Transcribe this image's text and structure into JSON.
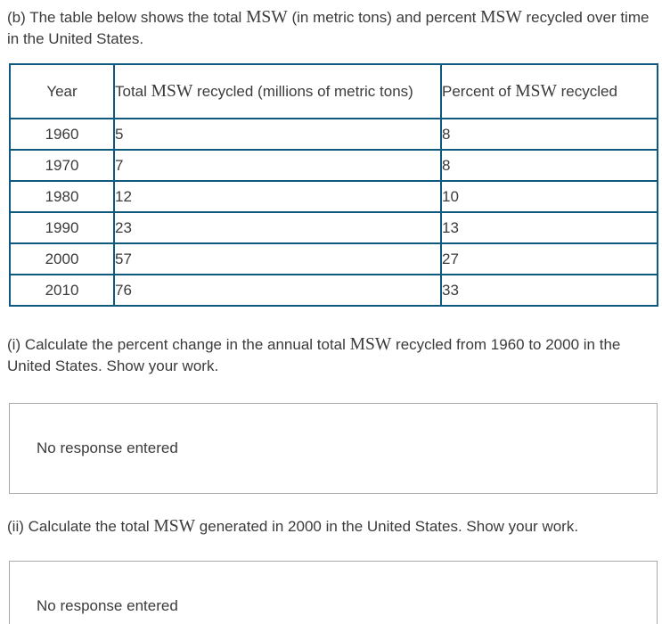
{
  "colors": {
    "text": "#3b3b3b",
    "table_border": "#0e5a7e",
    "box_border": "#a9a9a9",
    "background": "#ffffff"
  },
  "intro": {
    "segments": [
      {
        "text": "(b) The table below shows the total "
      },
      {
        "text": "MSW",
        "math": true
      },
      {
        "text": " (in metric tons) and percent "
      },
      {
        "text": "MSW",
        "math": true
      },
      {
        "text": " recycled over time in the United States."
      }
    ]
  },
  "table": {
    "headers": [
      {
        "segments": [
          {
            "text": "Year"
          }
        ]
      },
      {
        "segments": [
          {
            "text": "Total "
          },
          {
            "text": "MSW",
            "math": true
          },
          {
            "text": " recycled (millions of metric tons)"
          }
        ]
      },
      {
        "segments": [
          {
            "text": "Percent of "
          },
          {
            "text": "MSW",
            "math": true
          },
          {
            "text": " recycled"
          }
        ]
      }
    ],
    "rows": [
      {
        "year": "1960",
        "total": "5",
        "percent": "8"
      },
      {
        "year": "1970",
        "total": "7",
        "percent": "8"
      },
      {
        "year": "1980",
        "total": "12",
        "percent": "10"
      },
      {
        "year": "1990",
        "total": "23",
        "percent": "13"
      },
      {
        "year": "2000",
        "total": "57",
        "percent": "27"
      },
      {
        "year": "2010",
        "total": "76",
        "percent": "33"
      }
    ]
  },
  "questions": [
    {
      "segments": [
        {
          "text": "(i) Calculate the percent change in the annual total "
        },
        {
          "text": "MSW",
          "math": true
        },
        {
          "text": " recycled from 1960 to 2000 in the United States. Show your work."
        }
      ]
    },
    {
      "segments": [
        {
          "text": "(ii) Calculate the total "
        },
        {
          "text": "MSW",
          "math": true
        },
        {
          "text": " generated in 2000 in the United States. Show your work."
        }
      ]
    }
  ],
  "responses": [
    {
      "text": "No response entered"
    },
    {
      "text": "No response entered"
    }
  ]
}
